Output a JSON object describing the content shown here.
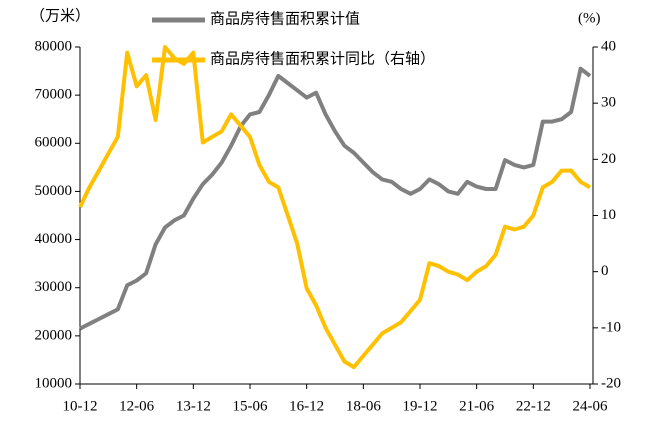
{
  "chart_data": {
    "type": "line",
    "y_unit_label": "（万米）",
    "y2_unit_label": "(%)",
    "categories": [
      "10-12",
      null,
      null,
      null,
      null,
      null,
      "12-06",
      null,
      null,
      null,
      null,
      null,
      "13-12",
      null,
      null,
      null,
      null,
      null,
      "15-06",
      null,
      null,
      null,
      null,
      null,
      "16-12",
      null,
      null,
      null,
      null,
      null,
      "18-06",
      null,
      null,
      null,
      null,
      null,
      "19-12",
      null,
      null,
      null,
      null,
      null,
      "21-06",
      null,
      null,
      null,
      null,
      null,
      "22-12",
      null,
      null,
      null,
      null,
      null,
      "24-06"
    ],
    "series": [
      {
        "name": "商品房待售面积累计值",
        "color": "#808080",
        "values": [
          21500,
          22500,
          23500,
          24500,
          25500,
          30500,
          31500,
          33000,
          39000,
          42500,
          44000,
          45000,
          48500,
          51500,
          53500,
          56000,
          59500,
          63500,
          66000,
          66500,
          70000,
          74000,
          72500,
          71000,
          69500,
          70500,
          66000,
          62500,
          59500,
          58000,
          56000,
          54000,
          52500,
          52000,
          50500,
          49500,
          50500,
          52500,
          51500,
          50000,
          49500,
          52000,
          51000,
          50500,
          50500,
          56500,
          55500,
          55000,
          55500,
          64500,
          64500,
          65000,
          66500,
          75500,
          74000
        ]
      },
      {
        "name": "商品房待售面积累计同比（右轴）",
        "color": "#FFC000",
        "axis": "y2",
        "values": [
          11.5,
          15,
          18,
          21,
          24,
          39,
          33,
          35,
          27,
          40,
          38,
          37,
          39,
          23,
          24,
          25,
          28,
          26,
          24,
          19,
          16,
          15,
          10,
          5,
          -3,
          -6,
          -10,
          -13,
          -16,
          -17,
          -15,
          -13,
          -11,
          -10,
          -9,
          -7,
          -5,
          1.5,
          1,
          0,
          -0.5,
          -1.5,
          0,
          1,
          3,
          8,
          7.5,
          8,
          10,
          15,
          16,
          18,
          18,
          16,
          15
        ]
      }
    ],
    "ylim": [
      10000,
      80000
    ],
    "yticks": [
      10000,
      20000,
      30000,
      40000,
      50000,
      60000,
      70000,
      80000
    ],
    "y2lim": [
      -20,
      40
    ],
    "y2ticks": [
      -20,
      -10,
      0,
      10,
      20,
      30,
      40
    ],
    "grid": false
  }
}
